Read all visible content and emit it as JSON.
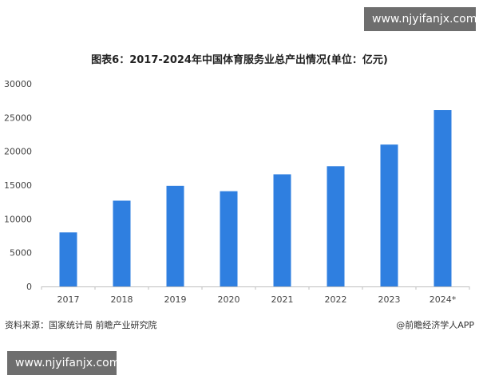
{
  "watermark": {
    "top_text": "www.njyifanjx.com",
    "bottom_text": "www.njyifanjx.com"
  },
  "footer": {
    "source": "资料来源：国家统计局 前瞻产业研究院",
    "credit": "@前瞻经济学人APP"
  },
  "colors": {
    "bar": "#2f7fe0",
    "axis": "#bfbfbf",
    "tick_text": "#444444"
  },
  "chart_data": {
    "type": "bar",
    "title": "图表6：2017-2024年中国体育服务业总产出情况(单位：亿元)",
    "categories": [
      "2017",
      "2018",
      "2019",
      "2020",
      "2021",
      "2022",
      "2023",
      "2024*"
    ],
    "values": [
      8000,
      12700,
      14900,
      14100,
      16600,
      17800,
      21000,
      26100
    ],
    "ylim": [
      0,
      30000
    ],
    "yticks": [
      "0",
      "5000",
      "10000",
      "15000",
      "20000",
      "25000",
      "30000"
    ],
    "xlabel": "",
    "ylabel": "",
    "grid": false,
    "legend": "none"
  }
}
